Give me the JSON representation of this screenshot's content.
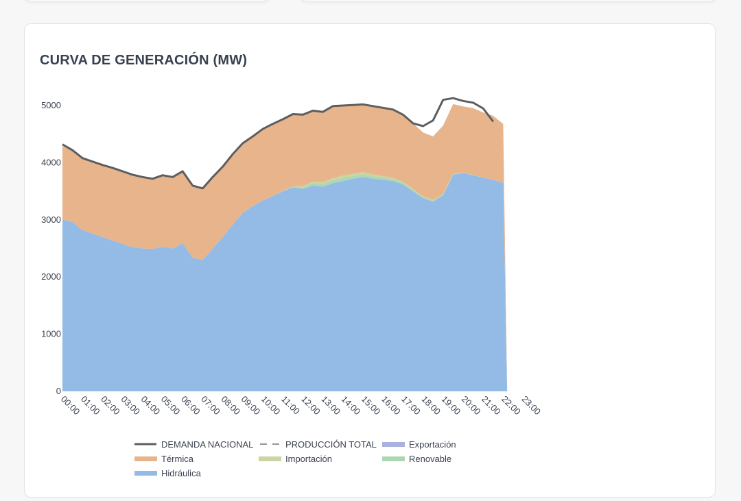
{
  "card": {
    "title": "CURVA DE GENERACIÓN (MW)"
  },
  "chart_data": {
    "type": "area",
    "title": "CURVA DE GENERACIÓN (MW)",
    "xlabel": "",
    "ylabel": "",
    "ylim": [
      0,
      5000
    ],
    "yticks": [
      0,
      1000,
      2000,
      3000,
      4000,
      5000
    ],
    "xticks": [
      "00:00",
      "01:00",
      "02:00",
      "03:00",
      "04:00",
      "05:00",
      "06:00",
      "07:00",
      "08:00",
      "09:00",
      "10:00",
      "11:00",
      "12:00",
      "13:00",
      "14:00",
      "15:00",
      "16:00",
      "17:00",
      "18:00",
      "19:00",
      "20:00",
      "21:00",
      "22:00",
      "23:00"
    ],
    "x_hours": [
      0,
      0.5,
      1,
      1.5,
      2,
      2.5,
      3,
      3.5,
      4,
      4.5,
      5,
      5.5,
      6,
      6.5,
      7,
      7.5,
      8,
      8.5,
      9,
      9.5,
      10,
      10.5,
      11,
      11.5,
      12,
      12.5,
      13,
      13.5,
      14,
      14.5,
      15,
      15.5,
      16,
      16.5,
      17,
      17.5,
      18,
      18.5,
      19,
      19.5,
      20,
      20.5,
      21,
      21.5,
      22
    ],
    "stacked_order": [
      "Hidráulica",
      "Renovable",
      "Importación",
      "Exportación",
      "Térmica"
    ],
    "series": [
      {
        "name": "Hidráulica",
        "kind": "area",
        "color": "#94bbe5",
        "values": [
          3010,
          2960,
          2820,
          2760,
          2700,
          2640,
          2580,
          2520,
          2500,
          2490,
          2530,
          2500,
          2590,
          2340,
          2300,
          2500,
          2700,
          2920,
          3120,
          3240,
          3340,
          3420,
          3500,
          3570,
          3540,
          3600,
          3580,
          3640,
          3680,
          3720,
          3750,
          3720,
          3700,
          3680,
          3620,
          3500,
          3380,
          3320,
          3430,
          3790,
          3820,
          3780,
          3740,
          3700,
          3650
        ]
      },
      {
        "name": "Renovable",
        "kind": "area",
        "color": "#acd7b1",
        "values": [
          0,
          0,
          0,
          0,
          0,
          0,
          0,
          0,
          0,
          0,
          0,
          0,
          0,
          0,
          0,
          0,
          0,
          0,
          0,
          0,
          0,
          0,
          5,
          10,
          30,
          40,
          45,
          50,
          55,
          50,
          50,
          45,
          40,
          35,
          30,
          25,
          20,
          20,
          15,
          10,
          5,
          5,
          0,
          0,
          0
        ]
      },
      {
        "name": "Importación",
        "kind": "area",
        "color": "#c9d5a3",
        "values": [
          0,
          0,
          0,
          0,
          0,
          0,
          0,
          0,
          0,
          0,
          0,
          0,
          0,
          0,
          0,
          0,
          0,
          0,
          0,
          0,
          0,
          0,
          0,
          5,
          20,
          30,
          35,
          40,
          40,
          35,
          35,
          30,
          25,
          20,
          15,
          15,
          10,
          10,
          5,
          5,
          0,
          0,
          0,
          0,
          0
        ]
      },
      {
        "name": "Exportación",
        "kind": "area",
        "color": "#a9b2dc",
        "values": [
          0,
          0,
          0,
          0,
          0,
          0,
          0,
          0,
          0,
          0,
          0,
          0,
          0,
          0,
          0,
          0,
          0,
          0,
          0,
          0,
          0,
          0,
          0,
          0,
          0,
          0,
          0,
          0,
          0,
          0,
          0,
          0,
          0,
          0,
          0,
          0,
          0,
          0,
          0,
          0,
          0,
          0,
          0,
          0,
          0
        ]
      },
      {
        "name": "Térmica",
        "kind": "area",
        "color": "#e8b48c",
        "values": [
          1280,
          1250,
          1260,
          1260,
          1250,
          1260,
          1250,
          1260,
          1240,
          1230,
          1250,
          1250,
          1260,
          1260,
          1250,
          1240,
          1230,
          1220,
          1220,
          1220,
          1250,
          1260,
          1240,
          1250,
          1270,
          1240,
          1240,
          1260,
          1240,
          1220,
          1190,
          1190,
          1200,
          1200,
          1170,
          1150,
          1120,
          1110,
          1200,
          1220,
          1160,
          1170,
          1140,
          1120,
          1030
        ]
      },
      {
        "name": "DEMANDA NACIONAL",
        "kind": "line",
        "color": "#5c5e60",
        "values": [
          4320,
          4220,
          4080,
          4020,
          3960,
          3910,
          3850,
          3790,
          3750,
          3720,
          3780,
          3750,
          3850,
          3600,
          3550,
          3750,
          3930,
          4150,
          4340,
          4460,
          4590,
          4680,
          4760,
          4850,
          4840,
          4910,
          4890,
          4990,
          5000,
          5010,
          5020,
          4990,
          4960,
          4930,
          4840,
          4690,
          4640,
          4740,
          5100,
          5130,
          5080,
          5050,
          4950,
          4720,
          null
        ]
      },
      {
        "name": "PRODUCCIÓN TOTAL",
        "kind": "dashed-line",
        "color": "#6e7073",
        "values": []
      }
    ],
    "tail": {
      "x_hour": 22.2,
      "value": 0
    },
    "legend": [
      {
        "label": "DEMANDA NACIONAL",
        "symbol": "line",
        "color": "#5c5e60"
      },
      {
        "label": "PRODUCCIÓN TOTAL",
        "symbol": "dash",
        "color": "#6e7073"
      },
      {
        "label": "Exportación",
        "symbol": "swatch",
        "color": "#a9b2dc"
      },
      {
        "label": "Térmica",
        "symbol": "swatch",
        "color": "#e8b48c"
      },
      {
        "label": "Importación",
        "symbol": "swatch",
        "color": "#c9d5a3"
      },
      {
        "label": "Renovable",
        "symbol": "swatch",
        "color": "#acd7b1"
      },
      {
        "label": "Hidráulica",
        "symbol": "swatch",
        "color": "#94bbe5"
      }
    ],
    "legend_position": "bottom-left"
  }
}
